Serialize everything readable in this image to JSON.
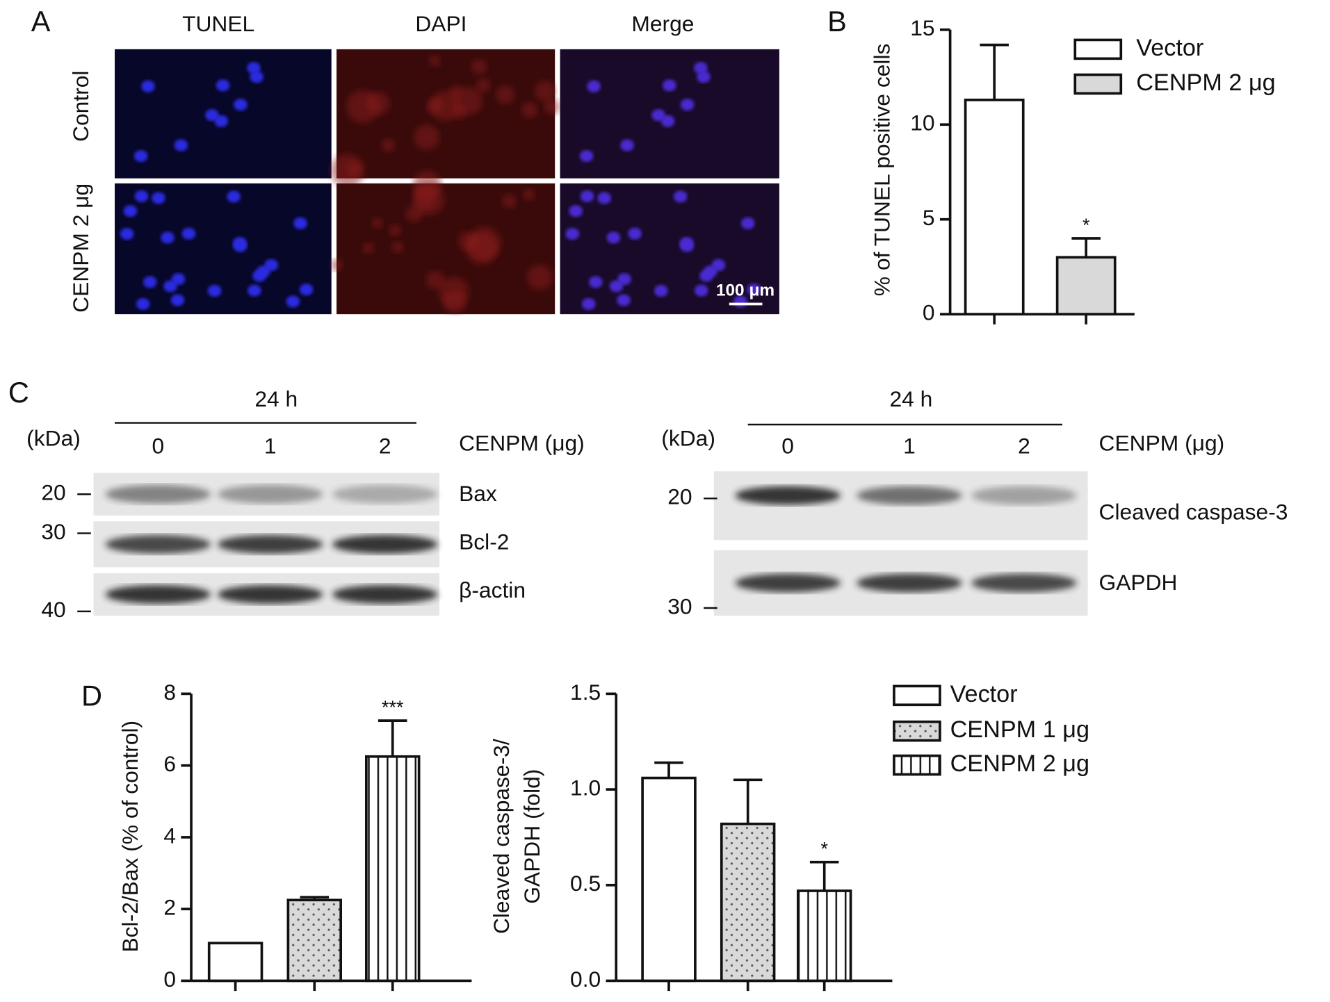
{
  "panel_labels": [
    "A",
    "B",
    "C",
    "D"
  ],
  "microscopy": {
    "columns": [
      "TUNEL",
      "DAPI",
      "Merge"
    ],
    "rows": [
      "Control",
      "CENPM 2 μg"
    ],
    "scale_bar": "100 μm"
  },
  "blots": [
    {
      "time": "24 h",
      "unit": "(kDa)",
      "lanes": [
        "0",
        "1",
        "2"
      ],
      "lane_label": "CENPM (μg)",
      "bands": [
        "Bax",
        "Bcl-2",
        "β-actin"
      ],
      "markers": [
        "20",
        "30",
        "40"
      ]
    },
    {
      "time": "24 h",
      "unit": "(kDa)",
      "lanes": [
        "0",
        "1",
        "2"
      ],
      "lane_label": "CENPM (μg)",
      "bands": [
        "Cleaved caspase-3",
        "GAPDH"
      ],
      "markers": [
        "20",
        "30"
      ]
    }
  ],
  "chart_data": [
    {
      "type": "bar",
      "ylabel": [
        "% of TUNEL positive cells"
      ],
      "categories": [
        "Vector",
        "CENPM 2 μg"
      ],
      "values": [
        11.3,
        3.0
      ],
      "errors": [
        2.9,
        1.0
      ],
      "annotations": [
        null,
        "*"
      ],
      "colors": [
        "#ffffff",
        "#d9d9d9"
      ],
      "patterns": [
        "none",
        "none"
      ],
      "ylim": [
        0,
        15
      ],
      "yticks": [
        0,
        5,
        10,
        15
      ]
    },
    {
      "type": "bar",
      "ylabel": [
        "Bcl-2/Bax (% of control)"
      ],
      "categories": [
        "Vector",
        "CENPM 1 μg",
        "CENPM 2 μg"
      ],
      "values": [
        1.05,
        2.25,
        6.25
      ],
      "errors": [
        null,
        0.08,
        1.0
      ],
      "annotations": [
        null,
        null,
        "***"
      ],
      "colors": [
        "#ffffff",
        "#d9d9d9",
        "#ffffff"
      ],
      "patterns": [
        "none",
        "dots",
        "stripes"
      ],
      "ylim": [
        0,
        8
      ],
      "yticks": [
        0,
        2,
        4,
        6,
        8
      ],
      "legend": false
    },
    {
      "type": "bar",
      "ylabel": [
        "Cleaved caspase-3/",
        "GAPDH (fold)"
      ],
      "categories": [
        "Vector",
        "CENPM 1 μg",
        "CENPM 2 μg"
      ],
      "values": [
        1.06,
        0.82,
        0.47
      ],
      "errors": [
        0.08,
        0.23,
        0.15
      ],
      "annotations": [
        null,
        null,
        "*"
      ],
      "colors": [
        "#ffffff",
        "#d9d9d9",
        "#ffffff"
      ],
      "patterns": [
        "none",
        "dots",
        "stripes"
      ],
      "ylim": [
        0,
        1.5
      ],
      "yticks": [
        {
          "value": 0,
          "label": "0.0"
        },
        0.5,
        {
          "value": 1,
          "label": "1.0"
        },
        1.5
      ],
      "legend": true
    }
  ]
}
